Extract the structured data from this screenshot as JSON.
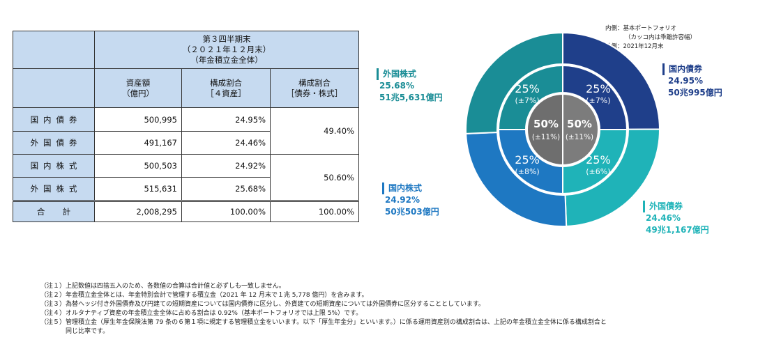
{
  "table": {
    "period_title": "第３四半期末",
    "period_date": "（２０２１年１２月末）",
    "period_scope": "（年金積立金全体）",
    "col_amount": "資産額",
    "col_amount_unit": "（億円）",
    "col_share4": "構成割合",
    "col_share4_sub": "［４資産］",
    "col_share2": "構成割合",
    "col_share2_sub": "［債券・株式］",
    "rows": [
      {
        "label": "国内債券",
        "amount": "500,995",
        "share": "24.95%"
      },
      {
        "label": "外国債券",
        "amount": "491,167",
        "share": "24.46%"
      },
      {
        "label": "国内株式",
        "amount": "500,503",
        "share": "24.92%"
      },
      {
        "label": "外国株式",
        "amount": "515,631",
        "share": "25.68%"
      }
    ],
    "bonds_share": "49.40%",
    "stocks_share": "50.60%",
    "total": {
      "label": "合　計",
      "amount": "2,008,295",
      "share": "100.00%",
      "share2": "100.00%"
    }
  },
  "legend": {
    "inner": "内側：基本ポートフォリオ",
    "inner_note": "（カッコ内は乖離許容幅）",
    "outer": "外側：2021年12月末"
  },
  "chart_data": {
    "type": "pie",
    "outer_ring": [
      {
        "name": "国内債券",
        "value": 24.95,
        "label_pct": "24.95%",
        "label_amt": "50兆995億円",
        "color": "#1f3f8a"
      },
      {
        "name": "外国債券",
        "value": 24.46,
        "label_pct": "24.46%",
        "label_amt": "49兆1,167億円",
        "color": "#1fb3b8"
      },
      {
        "name": "国内株式",
        "value": 24.92,
        "label_pct": "24.92%",
        "label_amt": "50兆503億円",
        "color": "#1e78c2"
      },
      {
        "name": "外国株式",
        "value": 25.68,
        "label_pct": "25.68%",
        "label_amt": "51兆5,631億円",
        "color": "#1a8d96"
      }
    ],
    "inner_ring": [
      {
        "name": "国内債券",
        "value": 25,
        "label": "25%",
        "range": "(±7%)",
        "color": "#1f3f8a"
      },
      {
        "name": "外国債券",
        "value": 25,
        "label": "25%",
        "range": "(±6%)",
        "color": "#1fb3b8"
      },
      {
        "name": "国内株式",
        "value": 25,
        "label": "25%",
        "range": "(±8%)",
        "color": "#1e78c2"
      },
      {
        "name": "外国株式",
        "value": 25,
        "label": "25%",
        "range": "(±7%)",
        "color": "#1a8d96"
      }
    ],
    "center": [
      {
        "name": "株式",
        "value": 50,
        "label": "50%",
        "range": "(±11%)",
        "color": "#6e6e6e"
      },
      {
        "name": "債券",
        "value": 50,
        "label": "50%",
        "range": "(±11%)",
        "color": "#7c7c7c"
      }
    ]
  },
  "notes": [
    "（注１）上記数値は四捨五入のため、各数値の合算は合計値と必ずしも一致しません。",
    "（注２）年金積立金全体とは、年金特別会計で管理する積立金（2021 年 12 月末で１兆 5,778 億円）を含みます。",
    "（注３）為替ヘッジ付き外国債券及び円建ての短期資産については国内債券に区分し、外貨建ての短期資産については外国債券に区分することとしています。",
    "（注４）オルタナティブ資産の年金積立金全体に占める割合は 0.92%（基本ポートフォリオでは上限 5%）です。",
    "（注５）管理積立金（厚生年金保険法第 79 条の６第１項に規定する管理積立金をいいます。以下「厚生年金分」といいます。）に係る運用資産別の構成割合は、上記の年金積立金全体に係る構成割合と",
    "　　　　同じ比率です。"
  ]
}
